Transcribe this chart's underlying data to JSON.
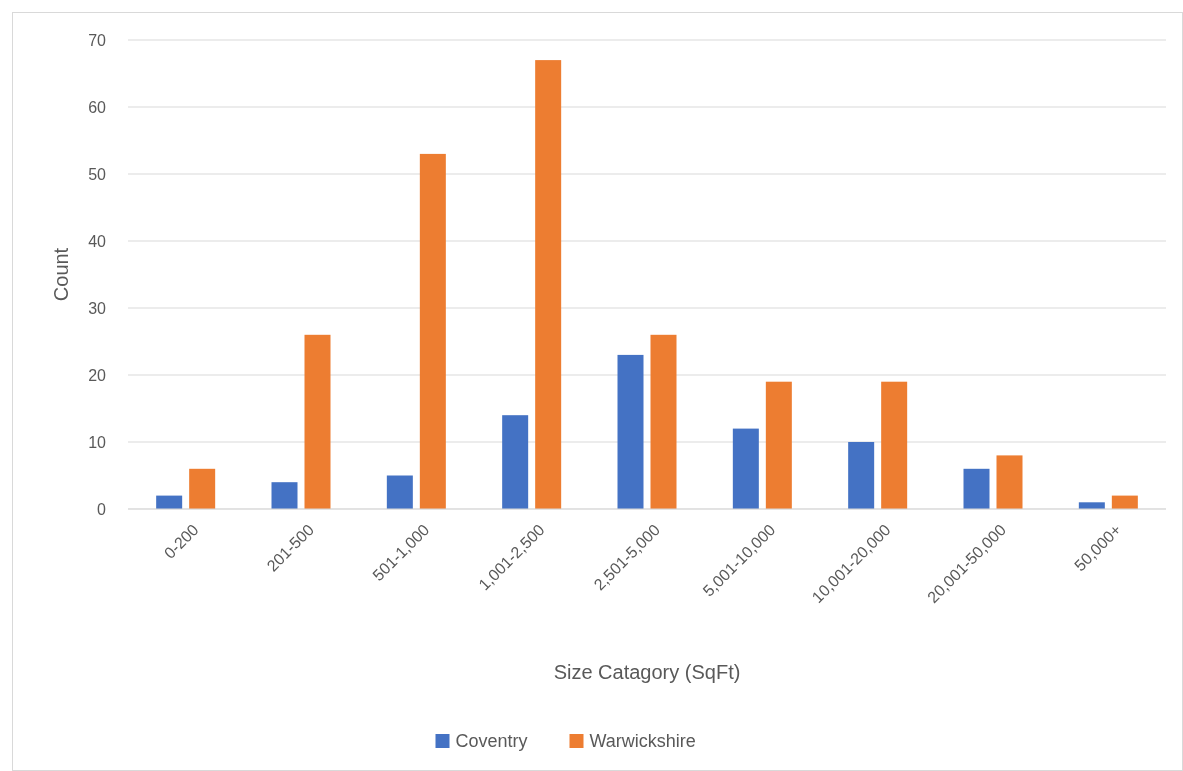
{
  "chart_data": {
    "type": "bar",
    "xlabel": "Size Catagory (SqFt)",
    "ylabel": "Count",
    "categories": [
      "0-200",
      "201-500",
      "501-1,000",
      "1,001-2,500",
      "2,501-5,000",
      "5,001-10,000",
      "10,001-20,000",
      "20,001-50,000",
      "50,000+"
    ],
    "series": [
      {
        "name": "Coventry",
        "color": "#4472c4",
        "values": [
          2,
          4,
          5,
          14,
          23,
          12,
          10,
          6,
          1
        ]
      },
      {
        "name": "Warwickshire",
        "color": "#ed7d31",
        "values": [
          6,
          26,
          53,
          67,
          26,
          19,
          19,
          8,
          2
        ]
      }
    ],
    "ylim": [
      0,
      70
    ],
    "yticks": [
      0,
      10,
      20,
      30,
      40,
      50,
      60,
      70
    ],
    "grid": "y",
    "legend": "bottom"
  }
}
